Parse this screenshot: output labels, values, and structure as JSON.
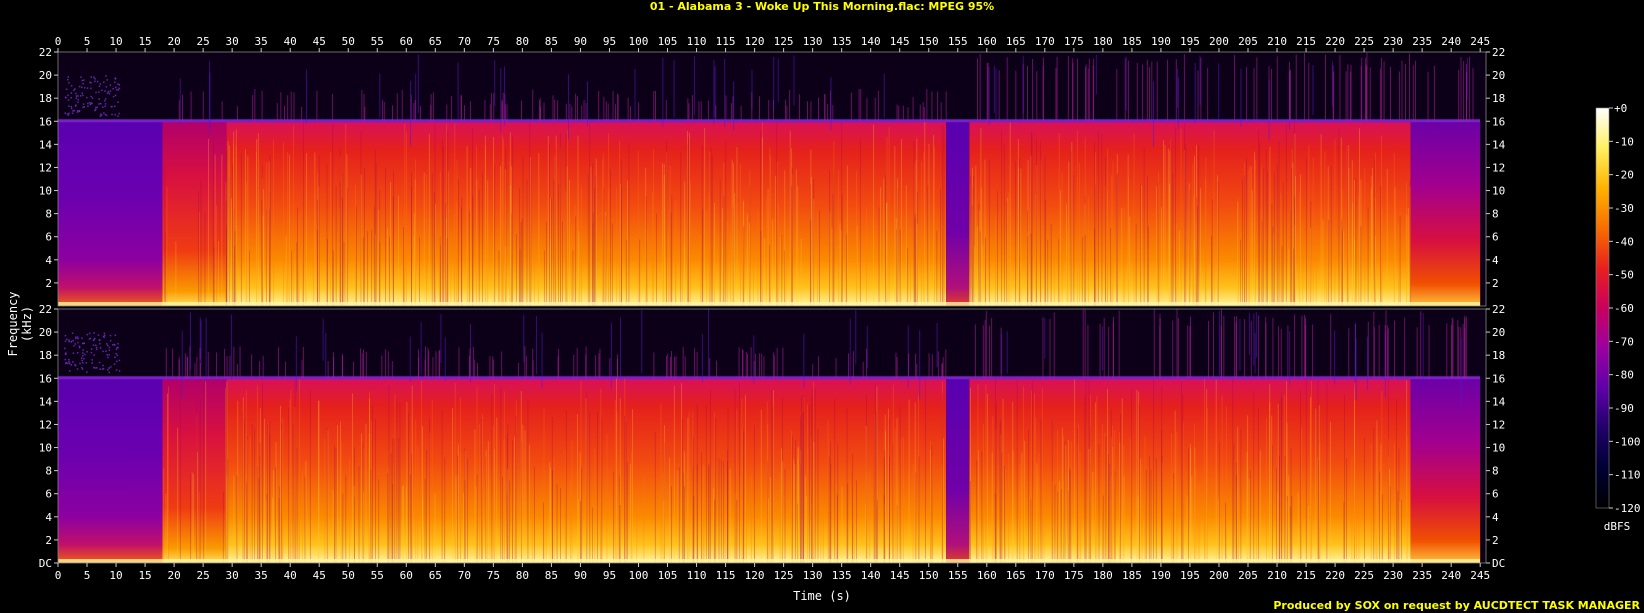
{
  "title": "01 - Alabama 3 - Woke Up This Morning.flac: MPEG 95%",
  "credit": "Produced by SOX on request by AUCDTECT TASK MANAGER",
  "chart_data": {
    "type": "heatmap",
    "subtype": "spectrogram",
    "channels": 2,
    "xlabel": "Time (s)",
    "ylabel": "Frequency (kHz)",
    "colorbar_label": "dBFS",
    "xlim": [
      0,
      246
    ],
    "ylim_khz": [
      0,
      22
    ],
    "x_ticks": [
      0,
      5,
      10,
      15,
      20,
      25,
      30,
      35,
      40,
      45,
      50,
      55,
      60,
      65,
      70,
      75,
      80,
      85,
      90,
      95,
      100,
      105,
      110,
      115,
      120,
      125,
      130,
      135,
      140,
      145,
      150,
      155,
      160,
      165,
      170,
      175,
      180,
      185,
      190,
      195,
      200,
      205,
      210,
      215,
      220,
      225,
      230,
      235,
      240,
      245
    ],
    "y_ticks_top": [
      "22",
      "20",
      "18",
      "16",
      "14",
      "12",
      "10",
      "8",
      "6",
      "4",
      "2"
    ],
    "y_ticks_bottom": [
      "22",
      "20",
      "18",
      "16",
      "14",
      "12",
      "10",
      "8",
      "6",
      "4",
      "2",
      "DC"
    ],
    "y_tick_values": [
      22,
      20,
      18,
      16,
      14,
      12,
      10,
      8,
      6,
      4,
      2,
      0
    ],
    "colorbar_ticks": [
      "+0",
      "-10",
      "-20",
      "-30",
      "-40",
      "-50",
      "-60",
      "-70",
      "-80",
      "-90",
      "-100",
      "-110",
      "-120"
    ],
    "colorbar_range_db": [
      -120,
      0
    ],
    "lowpass_cutoff_khz": 16,
    "segments": [
      {
        "t_start": 0,
        "t_end": 18,
        "character": "quiet intro"
      },
      {
        "t_start": 18,
        "t_end": 29,
        "character": "sparse"
      },
      {
        "t_start": 29,
        "t_end": 153,
        "character": "loud"
      },
      {
        "t_start": 153,
        "t_end": 157,
        "character": "quiet break"
      },
      {
        "t_start": 157,
        "t_end": 233,
        "character": "loud"
      },
      {
        "t_start": 233,
        "t_end": 245,
        "character": "fade out"
      }
    ],
    "colormap": [
      "#000000",
      "#000033",
      "#20006a",
      "#5e00a8",
      "#9b00a0",
      "#c9005e",
      "#e8201e",
      "#f86e00",
      "#ffb300",
      "#fff060",
      "#ffffff"
    ]
  }
}
